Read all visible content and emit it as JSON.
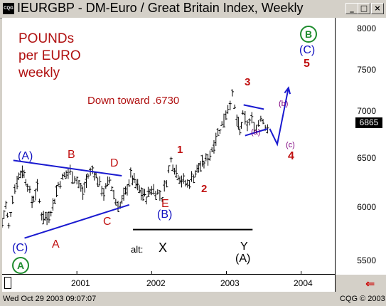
{
  "window": {
    "title": "IEURGBP - DM-Euro / Great Britain Index, Weekly",
    "app_icon_label": "CQG",
    "minimize_glyph": "_",
    "maximize_glyph": "□",
    "close_glyph": "×"
  },
  "annotations": {
    "heading_line1": "POUNDs",
    "heading_line2": "per EURO",
    "heading_line3": "weekly",
    "comment": "Down toward .6730",
    "alt_label": "alt:",
    "alt_x_mark": "X",
    "alt_y_mark": "Y",
    "alt_A_mark": "(A)",
    "wave_A_paren_left": "(A)",
    "wave_B": "B",
    "wave_D": "D",
    "wave_C_low": "C",
    "wave_A_low": "A",
    "wave_C_paren": "(C)",
    "wave_A_circle": "A",
    "wave_E": "E",
    "wave_B_paren": "(B)",
    "wave_1": "1",
    "wave_2": "2",
    "wave_3": "3",
    "wave_4": "4",
    "wave_5": "5",
    "wave_a_small": "(a)",
    "wave_b_small": "(b)",
    "wave_c_small": "(c)",
    "wave_C_paren_top": "(C)",
    "wave_B_circle": "B"
  },
  "chart_data": {
    "type": "bar",
    "instrument": "IEURGBP",
    "yaxis_ticks": [
      "8000",
      "7500",
      "7000",
      "6500",
      "6000",
      "5500"
    ],
    "xaxis_ticks": [
      "2001",
      "2002",
      "2003",
      "2004"
    ],
    "ylim": [
      5200,
      8200
    ],
    "last_price": "6865",
    "x_path": [
      2000.0,
      2000.05,
      2000.09,
      2000.14,
      2000.2,
      2000.27,
      2000.34,
      2000.4,
      2000.47,
      2000.53,
      2000.6,
      2000.68,
      2000.75,
      2000.83,
      2000.91,
      2001.0,
      2001.08,
      2001.15,
      2001.21,
      2001.28,
      2001.36,
      2001.44,
      2001.52,
      2001.58,
      2001.65,
      2001.72,
      2001.79,
      2001.86,
      2001.93,
      2002.0,
      2002.08,
      2002.14,
      2002.2,
      2002.26,
      2002.33,
      2002.4,
      2002.48,
      2002.56,
      2002.63,
      2002.7,
      2002.78,
      2002.86,
      2002.94,
      2003.02,
      2003.08,
      2003.14,
      2003.18,
      2003.22,
      2003.28,
      2003.34,
      2003.4,
      2003.46,
      2003.52,
      2003.58
    ],
    "y_path": [
      5800,
      6000,
      5750,
      6100,
      6300,
      6420,
      6250,
      6050,
      6200,
      5900,
      5850,
      6000,
      6250,
      6350,
      6400,
      6300,
      6150,
      6350,
      6420,
      6300,
      6150,
      6300,
      6050,
      6000,
      6150,
      6350,
      6250,
      6150,
      6100,
      6200,
      6150,
      6100,
      6300,
      6530,
      6400,
      6300,
      6250,
      6350,
      6450,
      6500,
      6600,
      6800,
      6950,
      7150,
      7280,
      7000,
      6850,
      7050,
      6950,
      7000,
      6900,
      7050,
      6950,
      6880
    ],
    "projection_x": [
      2003.58,
      2003.68,
      2003.83
    ],
    "projection_y": [
      6900,
      6720,
      7380
    ],
    "trendlines": [
      {
        "name": "upper-triangle",
        "x": [
          2000.15,
          2001.6
        ],
        "y": [
          6530,
          6350
        ]
      },
      {
        "name": "lower-triangle",
        "x": [
          2000.3,
          2001.7
        ],
        "y": [
          5620,
          6010
        ]
      },
      {
        "name": "alt-line",
        "x": [
          2001.75,
          2003.35
        ],
        "y": [
          5720,
          5720
        ]
      },
      {
        "name": "small-triangle-upper",
        "x": [
          2003.23,
          2003.5
        ],
        "y": [
          7180,
          7130
        ]
      },
      {
        "name": "small-triangle-lower",
        "x": [
          2003.25,
          2003.55
        ],
        "y": [
          6820,
          6900
        ]
      }
    ],
    "grid": false,
    "legend": "none"
  }
}
